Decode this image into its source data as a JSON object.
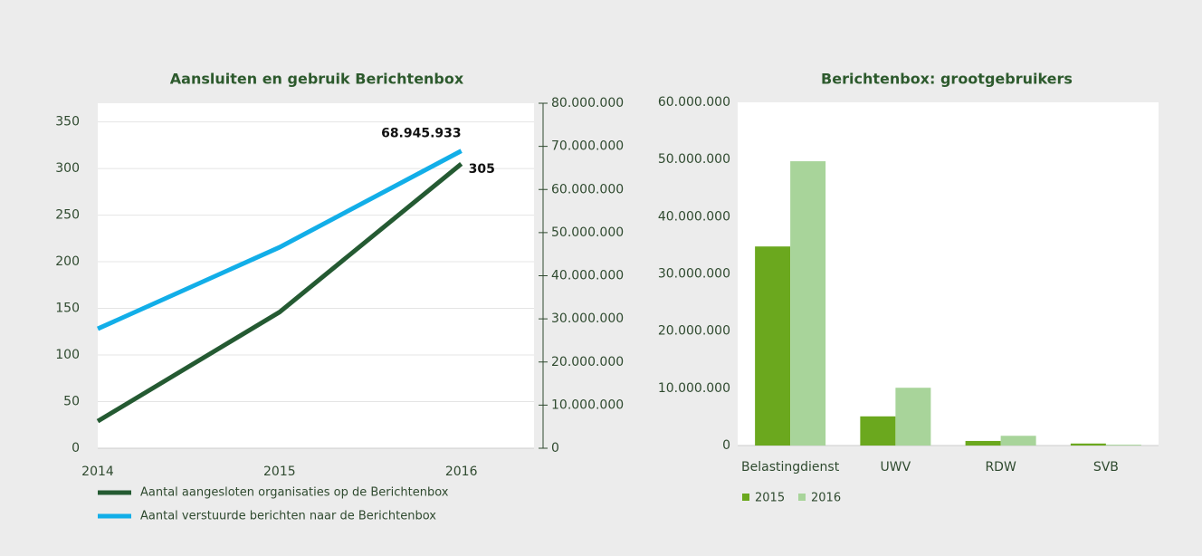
{
  "chart_data": [
    {
      "type": "line",
      "title": "Aansluiten en gebruik Berichtenbox",
      "x": [
        2014,
        2015,
        2016
      ],
      "xlim": [
        2014,
        2016.4
      ],
      "xticks": [
        2014,
        2015,
        2016
      ],
      "ylim": [
        0,
        370
      ],
      "yticks": [
        0,
        50,
        100,
        150,
        200,
        250,
        300,
        350
      ],
      "y2lim": [
        0,
        80000000
      ],
      "y2ticks": [
        0,
        {
          "value": 10000000,
          "label": "10.000.000"
        },
        {
          "value": 20000000,
          "label": "20.000.000"
        },
        {
          "value": 30000000,
          "label": "30.000.000"
        },
        {
          "value": 40000000,
          "label": "40.000.000"
        },
        {
          "value": 50000000,
          "label": "50.000.000"
        },
        {
          "value": 60000000,
          "label": "60.000.000"
        },
        {
          "value": 70000000,
          "label": "70.000.000"
        },
        {
          "value": 80000000,
          "label": "80.000.000"
        }
      ],
      "grid": true,
      "series": [
        {
          "name": "Aantal aangesloten organisaties op de Berichtenbox",
          "color": "#245a32",
          "values": [
            29,
            146,
            305
          ]
        },
        {
          "name": "Aantal verstuurde berichten naar de Berichtenbox",
          "color": "#12aee8",
          "axis": "y2",
          "values": [
            27700000,
            46600000,
            68945933
          ],
          "value_labels": [
            null,
            null,
            "68.945.933"
          ]
        }
      ]
    },
    {
      "type": "bar",
      "title": "Berichtenbox: grootgebruikers",
      "categories": [
        "Belastingdienst",
        "UWV",
        "RDW",
        "SVB"
      ],
      "ylim": [
        0,
        60000000
      ],
      "yticks": [
        0,
        {
          "value": 10000000,
          "label": "10.000.000"
        },
        {
          "value": 20000000,
          "label": "20.000.000"
        },
        {
          "value": 30000000,
          "label": "30.000.000"
        },
        {
          "value": 40000000,
          "label": "40.000.000"
        },
        {
          "value": 50000000,
          "label": "50.000.000"
        },
        {
          "value": 60000000,
          "label": "60.000.000"
        }
      ],
      "series": [
        {
          "name": "2015",
          "color": "#6ba81e",
          "values": [
            34800000,
            5100000,
            800000,
            350000
          ]
        },
        {
          "name": "2016",
          "color": "#a8d49a",
          "values": [
            49700000,
            10100000,
            1700000,
            150000
          ]
        }
      ]
    }
  ]
}
